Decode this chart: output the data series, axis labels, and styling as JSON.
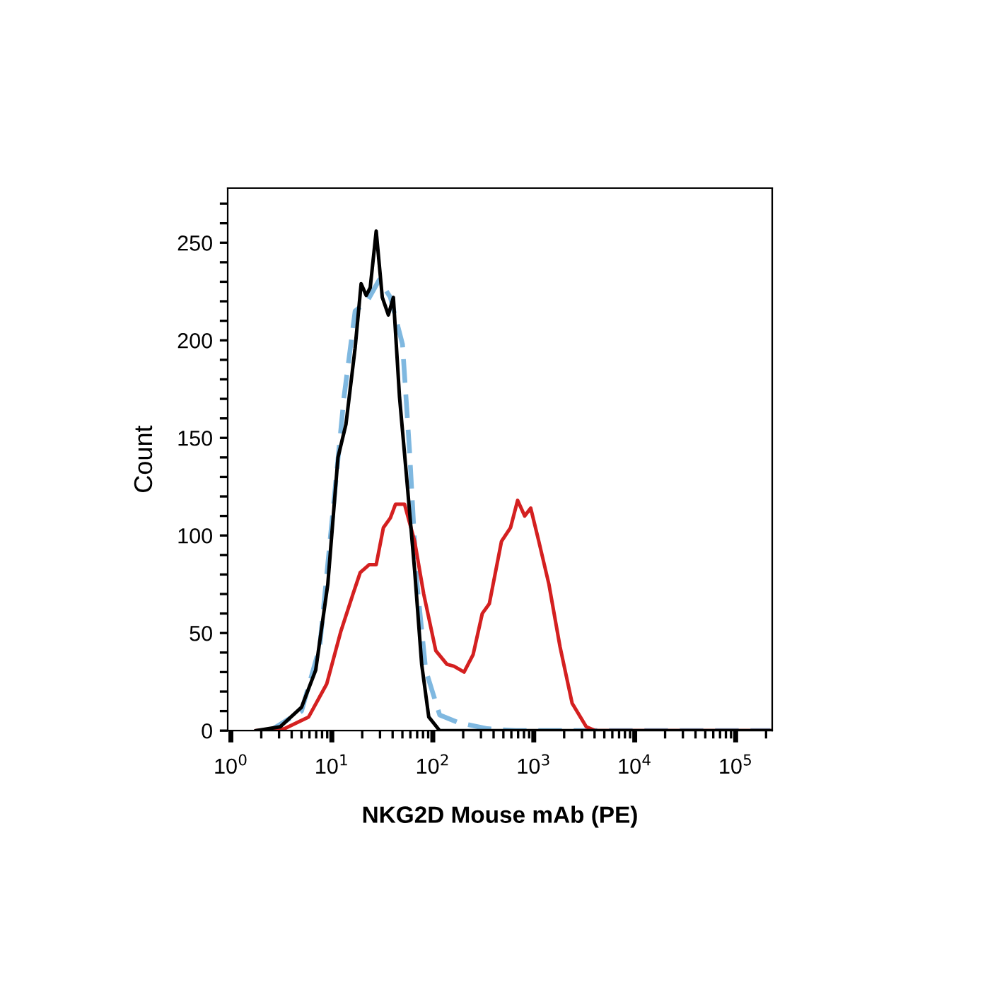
{
  "chart_data": {
    "type": "line",
    "xlabel": "NKG2D Mouse mAb (PE)",
    "ylabel": "Count",
    "log": "x",
    "xlim": [
      0.93,
      230000
    ],
    "ylim": [
      0,
      278
    ],
    "xticks": [
      {
        "value": 1,
        "label": "10$^{0}$"
      },
      {
        "value": 10,
        "label": "10$^{1}$"
      },
      {
        "value": 100,
        "label": "10$^{2}$"
      },
      {
        "value": 1000,
        "label": "10$^{3}$"
      },
      {
        "value": 10000,
        "label": "10$^{4}$"
      },
      {
        "value": 100000,
        "label": "10$^{5}$"
      }
    ],
    "yticks": [
      0,
      {
        "value": 10,
        "label": null
      },
      {
        "value": 20,
        "label": null
      },
      {
        "value": 30,
        "label": null
      },
      {
        "value": 40,
        "label": null
      },
      50,
      {
        "value": 60,
        "label": null
      },
      {
        "value": 70,
        "label": null
      },
      {
        "value": 80,
        "label": null
      },
      {
        "value": 90,
        "label": null
      },
      100,
      {
        "value": 110,
        "label": null
      },
      {
        "value": 120,
        "label": null
      },
      {
        "value": 130,
        "label": null
      },
      {
        "value": 140,
        "label": null
      },
      150,
      {
        "value": 160,
        "label": null
      },
      {
        "value": 170,
        "label": null
      },
      {
        "value": 180,
        "label": null
      },
      {
        "value": 190,
        "label": null
      },
      200,
      {
        "value": 210,
        "label": null
      },
      {
        "value": 220,
        "label": null
      },
      {
        "value": 230,
        "label": null
      },
      {
        "value": 240,
        "label": null
      },
      250,
      {
        "value": 260,
        "label": null
      },
      {
        "value": 270,
        "label": null
      }
    ],
    "grid": false,
    "legend": false,
    "marker": "none",
    "series": [
      {
        "color": "#d42020",
        "line_style": "solid",
        "x": [
          1.78,
          3.39,
          5.89,
          8.91,
          12.3,
          16.2,
          19.1,
          23.4,
          27.5,
          32.4,
          38.0,
          42.7,
          52.5,
          66.1,
          81.3,
          107,
          138,
          162,
          204,
          251,
          309,
          363,
          479,
          589,
          692,
          813,
          933,
          1122,
          1413,
          1820,
          2399,
          3311,
          4074,
          220000
        ],
        "values": [
          0,
          1,
          7,
          24,
          51,
          70,
          81,
          85,
          85,
          104,
          109,
          116,
          116,
          97,
          70,
          41,
          34,
          33,
          30,
          39,
          60,
          65,
          97,
          104,
          118,
          110,
          114,
          97,
          75,
          43,
          14,
          2,
          0,
          0
        ]
      },
      {
        "color": "#000000",
        "line_style": "solid",
        "x": [
          1.78,
          3.09,
          5.01,
          6.92,
          9.12,
          11.5,
          13.8,
          17.0,
          19.5,
          21.9,
          24.0,
          27.5,
          31.6,
          36.3,
          40.7,
          46.8,
          55.0,
          66.1,
          77.6,
          91.2,
          117,
          220000
        ],
        "values": [
          0,
          2,
          12,
          31,
          75,
          140,
          157,
          196,
          229,
          223,
          227,
          256,
          222,
          213,
          222,
          171,
          130,
          82,
          34,
          7,
          0,
          0
        ]
      },
      {
        "color": "#7fb8e0",
        "line_style": "dashed",
        "x": [
          2.45,
          5.01,
          7.59,
          10.5,
          13.2,
          17.0,
          22.4,
          29.5,
          38.0,
          50.1,
          58.9,
          69.2,
          85.1,
          117,
          182,
          347,
          661,
          220000
        ],
        "values": [
          0,
          10,
          43,
          118,
          171,
          215,
          220,
          231,
          222,
          198,
          143,
          77,
          31,
          8,
          4,
          1,
          0,
          0
        ]
      }
    ]
  }
}
